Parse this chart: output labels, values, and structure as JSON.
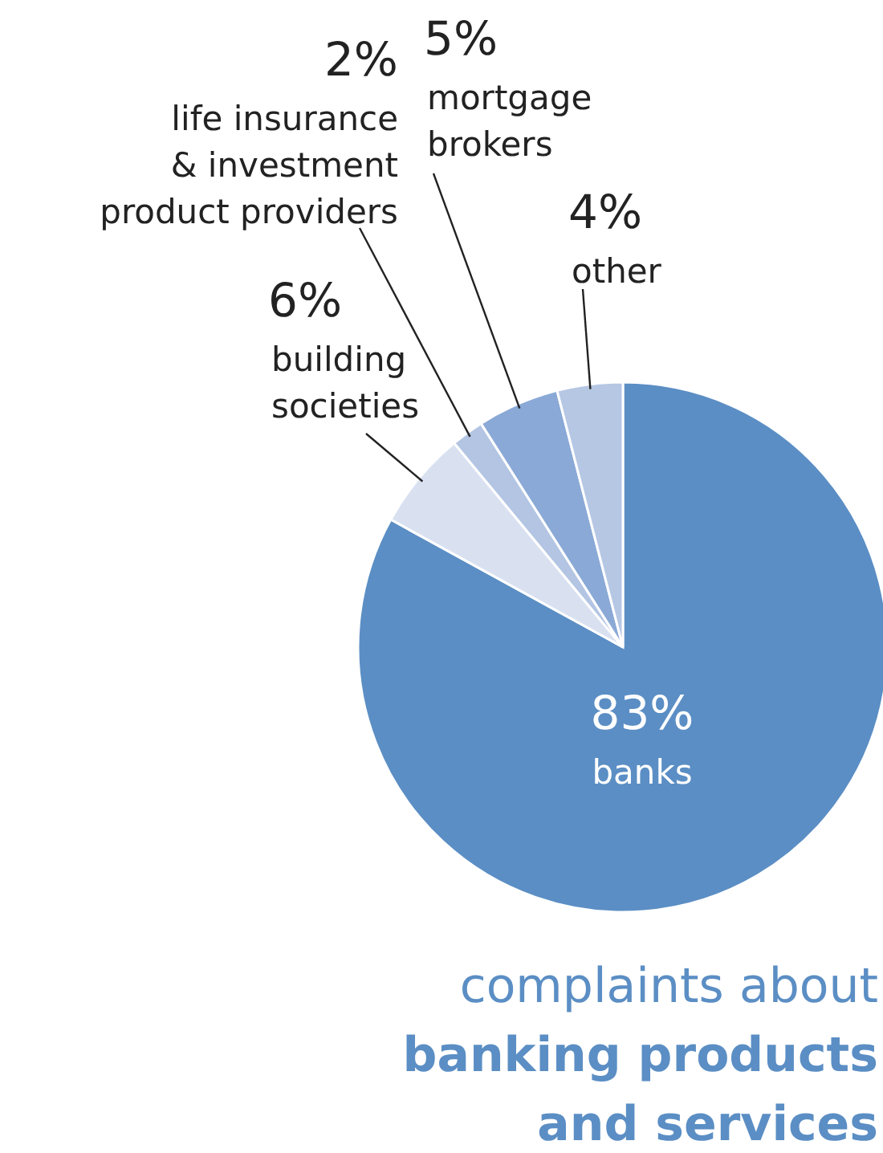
{
  "chart_data": {
    "type": "pie",
    "title": "complaints about",
    "subtitle": "banking products and services",
    "categories": [
      "banks",
      "building societies",
      "life insurance & investment product providers",
      "mortgage brokers",
      "other"
    ],
    "values": [
      83,
      6,
      2,
      5,
      4
    ],
    "value_labels": [
      "83%",
      "6%",
      "2%",
      "5%",
      "4%"
    ],
    "colors": [
      "#5b8ec4",
      "#d9e1f1",
      "#b3c5e3",
      "#8aa9d6",
      "#b6c7e4"
    ]
  }
}
